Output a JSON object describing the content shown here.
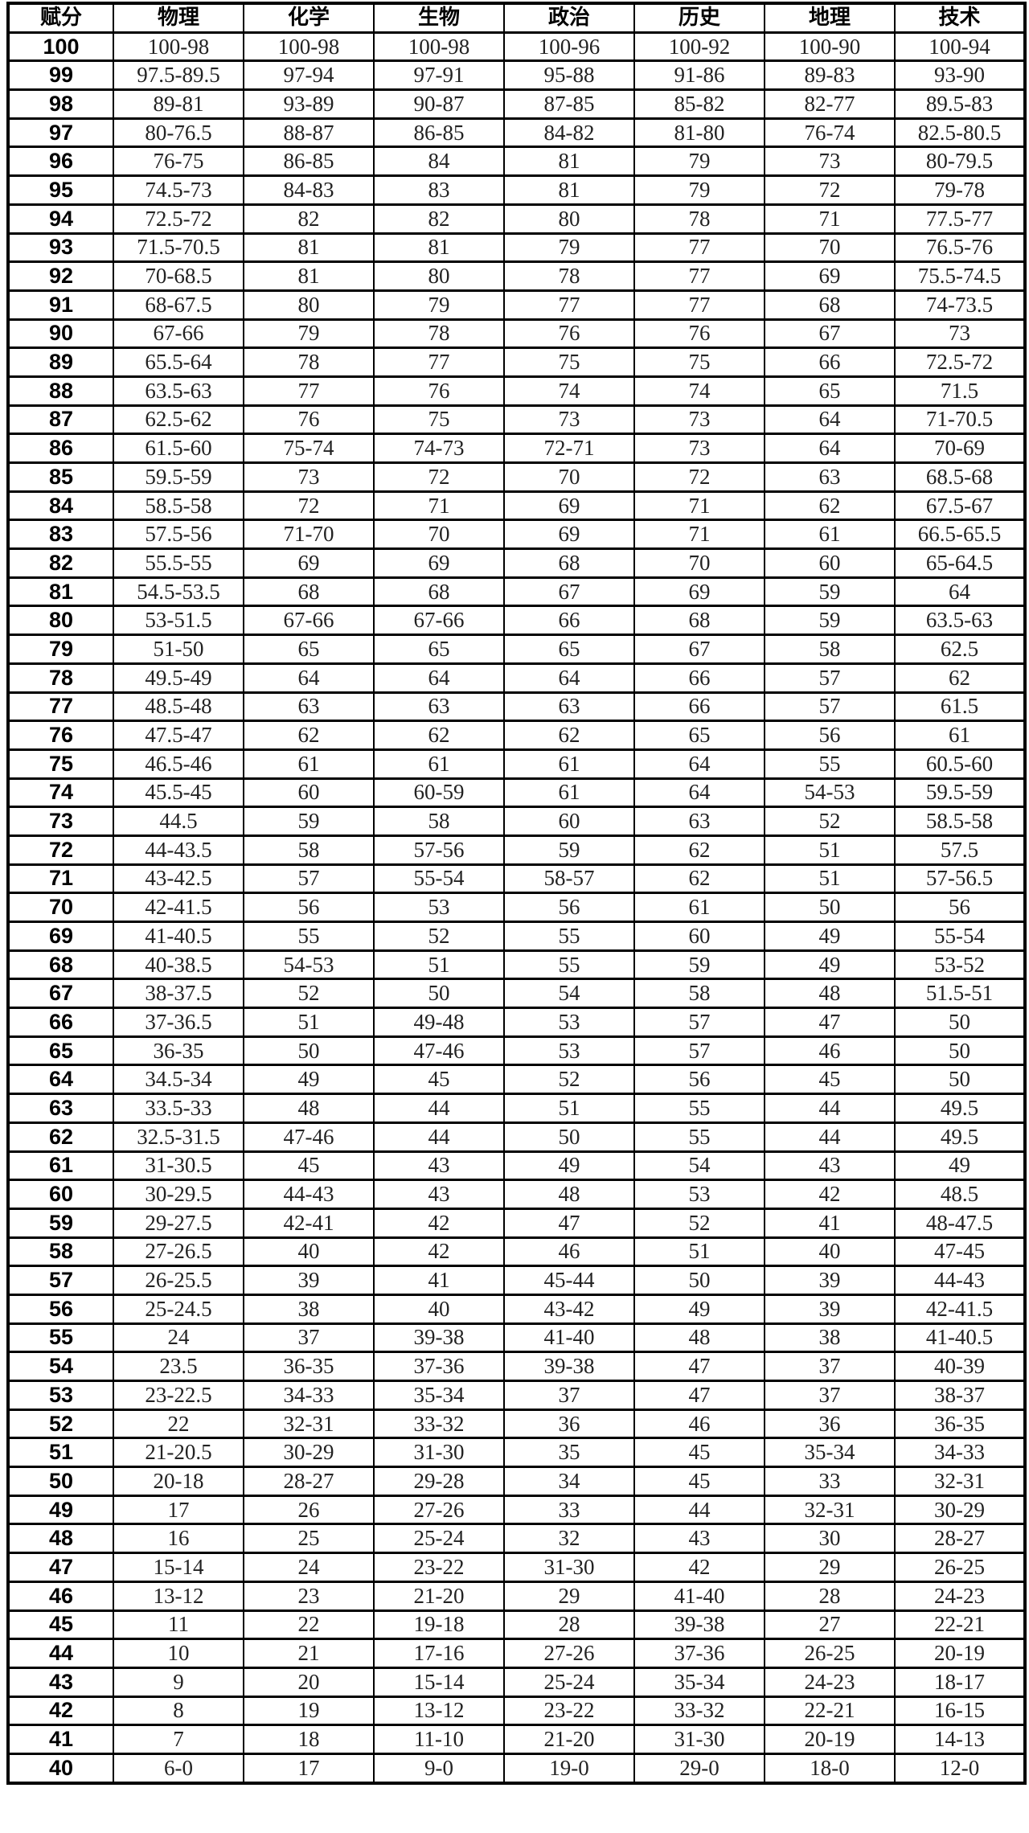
{
  "table": {
    "headers": [
      "赋分",
      "物理",
      "化学",
      "生物",
      "政治",
      "历史",
      "地理",
      "技术"
    ],
    "rows": [
      [
        "100",
        "100-98",
        "100-98",
        "100-98",
        "100-96",
        "100-92",
        "100-90",
        "100-94"
      ],
      [
        "99",
        "97.5-89.5",
        "97-94",
        "97-91",
        "95-88",
        "91-86",
        "89-83",
        "93-90"
      ],
      [
        "98",
        "89-81",
        "93-89",
        "90-87",
        "87-85",
        "85-82",
        "82-77",
        "89.5-83"
      ],
      [
        "97",
        "80-76.5",
        "88-87",
        "86-85",
        "84-82",
        "81-80",
        "76-74",
        "82.5-80.5"
      ],
      [
        "96",
        "76-75",
        "86-85",
        "84",
        "81",
        "79",
        "73",
        "80-79.5"
      ],
      [
        "95",
        "74.5-73",
        "84-83",
        "83",
        "81",
        "79",
        "72",
        "79-78"
      ],
      [
        "94",
        "72.5-72",
        "82",
        "82",
        "80",
        "78",
        "71",
        "77.5-77"
      ],
      [
        "93",
        "71.5-70.5",
        "81",
        "81",
        "79",
        "77",
        "70",
        "76.5-76"
      ],
      [
        "92",
        "70-68.5",
        "81",
        "80",
        "78",
        "77",
        "69",
        "75.5-74.5"
      ],
      [
        "91",
        "68-67.5",
        "80",
        "79",
        "77",
        "77",
        "68",
        "74-73.5"
      ],
      [
        "90",
        "67-66",
        "79",
        "78",
        "76",
        "76",
        "67",
        "73"
      ],
      [
        "89",
        "65.5-64",
        "78",
        "77",
        "75",
        "75",
        "66",
        "72.5-72"
      ],
      [
        "88",
        "63.5-63",
        "77",
        "76",
        "74",
        "74",
        "65",
        "71.5"
      ],
      [
        "87",
        "62.5-62",
        "76",
        "75",
        "73",
        "73",
        "64",
        "71-70.5"
      ],
      [
        "86",
        "61.5-60",
        "75-74",
        "74-73",
        "72-71",
        "73",
        "64",
        "70-69"
      ],
      [
        "85",
        "59.5-59",
        "73",
        "72",
        "70",
        "72",
        "63",
        "68.5-68"
      ],
      [
        "84",
        "58.5-58",
        "72",
        "71",
        "69",
        "71",
        "62",
        "67.5-67"
      ],
      [
        "83",
        "57.5-56",
        "71-70",
        "70",
        "69",
        "71",
        "61",
        "66.5-65.5"
      ],
      [
        "82",
        "55.5-55",
        "69",
        "69",
        "68",
        "70",
        "60",
        "65-64.5"
      ],
      [
        "81",
        "54.5-53.5",
        "68",
        "68",
        "67",
        "69",
        "59",
        "64"
      ],
      [
        "80",
        "53-51.5",
        "67-66",
        "67-66",
        "66",
        "68",
        "59",
        "63.5-63"
      ],
      [
        "79",
        "51-50",
        "65",
        "65",
        "65",
        "67",
        "58",
        "62.5"
      ],
      [
        "78",
        "49.5-49",
        "64",
        "64",
        "64",
        "66",
        "57",
        "62"
      ],
      [
        "77",
        "48.5-48",
        "63",
        "63",
        "63",
        "66",
        "57",
        "61.5"
      ],
      [
        "76",
        "47.5-47",
        "62",
        "62",
        "62",
        "65",
        "56",
        "61"
      ],
      [
        "75",
        "46.5-46",
        "61",
        "61",
        "61",
        "64",
        "55",
        "60.5-60"
      ],
      [
        "74",
        "45.5-45",
        "60",
        "60-59",
        "61",
        "64",
        "54-53",
        "59.5-59"
      ],
      [
        "73",
        "44.5",
        "59",
        "58",
        "60",
        "63",
        "52",
        "58.5-58"
      ],
      [
        "72",
        "44-43.5",
        "58",
        "57-56",
        "59",
        "62",
        "51",
        "57.5"
      ],
      [
        "71",
        "43-42.5",
        "57",
        "55-54",
        "58-57",
        "62",
        "51",
        "57-56.5"
      ],
      [
        "70",
        "42-41.5",
        "56",
        "53",
        "56",
        "61",
        "50",
        "56"
      ],
      [
        "69",
        "41-40.5",
        "55",
        "52",
        "55",
        "60",
        "49",
        "55-54"
      ],
      [
        "68",
        "40-38.5",
        "54-53",
        "51",
        "55",
        "59",
        "49",
        "53-52"
      ],
      [
        "67",
        "38-37.5",
        "52",
        "50",
        "54",
        "58",
        "48",
        "51.5-51"
      ],
      [
        "66",
        "37-36.5",
        "51",
        "49-48",
        "53",
        "57",
        "47",
        "50"
      ],
      [
        "65",
        "36-35",
        "50",
        "47-46",
        "53",
        "57",
        "46",
        "50"
      ],
      [
        "64",
        "34.5-34",
        "49",
        "45",
        "52",
        "56",
        "45",
        "50"
      ],
      [
        "63",
        "33.5-33",
        "48",
        "44",
        "51",
        "55",
        "44",
        "49.5"
      ],
      [
        "62",
        "32.5-31.5",
        "47-46",
        "44",
        "50",
        "55",
        "44",
        "49.5"
      ],
      [
        "61",
        "31-30.5",
        "45",
        "43",
        "49",
        "54",
        "43",
        "49"
      ],
      [
        "60",
        "30-29.5",
        "44-43",
        "43",
        "48",
        "53",
        "42",
        "48.5"
      ],
      [
        "59",
        "29-27.5",
        "42-41",
        "42",
        "47",
        "52",
        "41",
        "48-47.5"
      ],
      [
        "58",
        "27-26.5",
        "40",
        "42",
        "46",
        "51",
        "40",
        "47-45"
      ],
      [
        "57",
        "26-25.5",
        "39",
        "41",
        "45-44",
        "50",
        "39",
        "44-43"
      ],
      [
        "56",
        "25-24.5",
        "38",
        "40",
        "43-42",
        "49",
        "39",
        "42-41.5"
      ],
      [
        "55",
        "24",
        "37",
        "39-38",
        "41-40",
        "48",
        "38",
        "41-40.5"
      ],
      [
        "54",
        "23.5",
        "36-35",
        "37-36",
        "39-38",
        "47",
        "37",
        "40-39"
      ],
      [
        "53",
        "23-22.5",
        "34-33",
        "35-34",
        "37",
        "47",
        "37",
        "38-37"
      ],
      [
        "52",
        "22",
        "32-31",
        "33-32",
        "36",
        "46",
        "36",
        "36-35"
      ],
      [
        "51",
        "21-20.5",
        "30-29",
        "31-30",
        "35",
        "45",
        "35-34",
        "34-33"
      ],
      [
        "50",
        "20-18",
        "28-27",
        "29-28",
        "34",
        "45",
        "33",
        "32-31"
      ],
      [
        "49",
        "17",
        "26",
        "27-26",
        "33",
        "44",
        "32-31",
        "30-29"
      ],
      [
        "48",
        "16",
        "25",
        "25-24",
        "32",
        "43",
        "30",
        "28-27"
      ],
      [
        "47",
        "15-14",
        "24",
        "23-22",
        "31-30",
        "42",
        "29",
        "26-25"
      ],
      [
        "46",
        "13-12",
        "23",
        "21-20",
        "29",
        "41-40",
        "28",
        "24-23"
      ],
      [
        "45",
        "11",
        "22",
        "19-18",
        "28",
        "39-38",
        "27",
        "22-21"
      ],
      [
        "44",
        "10",
        "21",
        "17-16",
        "27-26",
        "37-36",
        "26-25",
        "20-19"
      ],
      [
        "43",
        "9",
        "20",
        "15-14",
        "25-24",
        "35-34",
        "24-23",
        "18-17"
      ],
      [
        "42",
        "8",
        "19",
        "13-12",
        "23-22",
        "33-32",
        "22-21",
        "16-15"
      ],
      [
        "41",
        "7",
        "18",
        "11-10",
        "21-20",
        "31-30",
        "20-19",
        "14-13"
      ],
      [
        "40",
        "6-0",
        "17",
        "9-0",
        "19-0",
        "29-0",
        "18-0",
        "12-0"
      ]
    ]
  }
}
